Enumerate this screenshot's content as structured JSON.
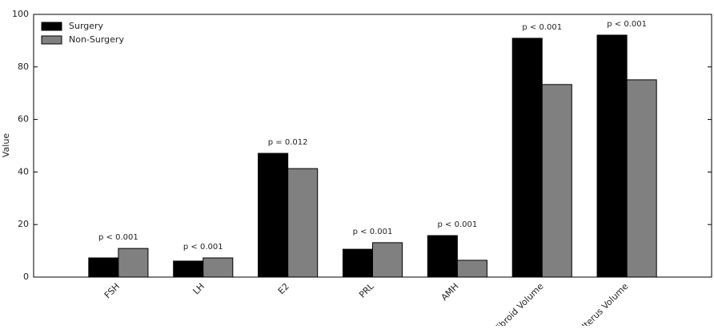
{
  "chart_data": {
    "type": "bar",
    "y_label": "Value",
    "categories": [
      "FSH",
      "LH",
      "E2",
      "PRL",
      "AMH",
      "Fibroid Volume",
      "Uterus Volume"
    ],
    "series": [
      {
        "name": "Surgery",
        "color": "#000000",
        "values": [
          7.3,
          6.1,
          47.1,
          10.6,
          15.8,
          90.9,
          92.1
        ]
      },
      {
        "name": "Non-Surgery",
        "color": "#808080",
        "values": [
          10.9,
          7.3,
          41.3,
          13.1,
          6.4,
          73.3,
          75.1
        ]
      }
    ],
    "annotations": [
      "p < 0.001",
      "p < 0.001",
      "p = 0.012",
      "p < 0.001",
      "p < 0.001",
      "p < 0.001",
      "p < 0.001"
    ],
    "ylim": [
      0,
      100
    ],
    "yticks": [
      0,
      20,
      40,
      60,
      80,
      100
    ],
    "legend": "upper left"
  }
}
